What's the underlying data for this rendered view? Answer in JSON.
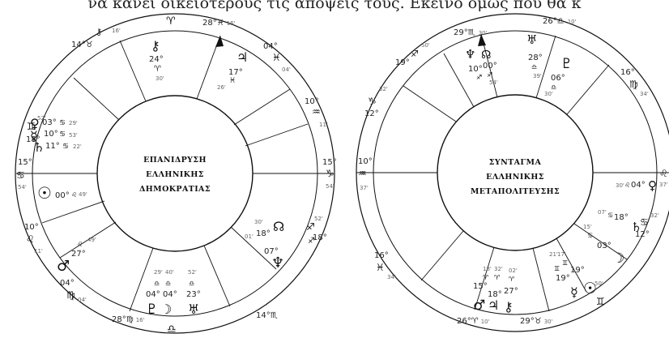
{
  "top_text": "να κανει οικειοτερους τις αποψεις τους. Εκεινο ομως που θα κ",
  "left_chart": {
    "title_lines": [
      "ΕΠΑΝΙΔΡΥΣΗ",
      "ΕΛΛΗΝΙΚΗΣ",
      "ΔΗΜΟΚΡΑΤΙΑΣ"
    ],
    "cusps": [
      {
        "deg": "28°",
        "sign": "♓",
        "min": "16'"
      },
      {
        "deg": "04°",
        "sign": "♓",
        "min": "04'"
      },
      {
        "deg": "10°",
        "sign": "♒",
        "min": "11'"
      },
      {
        "deg": "15°",
        "sign": "♑",
        "min": "54'"
      },
      {
        "deg": "18°",
        "sign": "♐",
        "min": "52'"
      },
      {
        "deg": "14°",
        "sign": "♏",
        "min": "16'"
      },
      {
        "deg": "28°",
        "sign": "♍",
        "min": "16'"
      },
      {
        "deg": "04°",
        "sign": "♍",
        "min": "04'"
      },
      {
        "deg": "10°",
        "sign": "♌",
        "min": "11'"
      },
      {
        "deg": "15°",
        "sign": "♋",
        "min": "54'"
      },
      {
        "deg": "18°",
        "sign": "♊",
        "min": "52'"
      },
      {
        "deg": "14°",
        "sign": "♉",
        "min": "16'"
      }
    ],
    "planets": [
      {
        "glyph": "⚷",
        "deg": "24°",
        "sign": "♈",
        "min": "30'"
      },
      {
        "glyph": "♃",
        "deg": "17°",
        "sign": "♓",
        "min": "26'"
      },
      {
        "glyph": "♀",
        "deg": "03°",
        "sign": "♋",
        "min": "29'"
      },
      {
        "glyph": "☿",
        "deg": "10°",
        "sign": "♋",
        "min": "53'"
      },
      {
        "glyph": "♄",
        "deg": "11°",
        "sign": "♋",
        "min": "22'"
      },
      {
        "glyph": "☉",
        "deg": "00°",
        "sign": "♌",
        "min": "49'"
      },
      {
        "glyph": "♂",
        "deg": "27°",
        "sign": "♌",
        "min": "49'"
      },
      {
        "glyph": "♇",
        "deg": "04°",
        "sign": "♎",
        "min": "29'"
      },
      {
        "glyph": "☽",
        "deg": "04°",
        "sign": "♎",
        "min": "40'"
      },
      {
        "glyph": "♅",
        "deg": "23°",
        "sign": "♎",
        "min": "52'"
      },
      {
        "glyph": "☊",
        "deg": "18°",
        "sign": "♐",
        "min": "30'"
      },
      {
        "glyph": "♆",
        "deg": "07°",
        "sign": "♐",
        "min": "01'"
      }
    ],
    "extra_labels": {
      "aries_top": "♈",
      "left_asc_deg": "15°",
      "left_asc_sign": "♋",
      "right_desc_deg": "15°",
      "right_desc_sign": "♑"
    }
  },
  "right_chart": {
    "title_lines": [
      "ΣΥΝΤΑΓΜΑ",
      "ΕΛΛΗΝΙΚΗΣ",
      "ΜΕΤΑΠΟΛΙΤΕΥΣΗΣ"
    ],
    "cusps": [
      {
        "deg": "29°",
        "sign": "♏",
        "min": "30'"
      },
      {
        "deg": "26°",
        "sign": "♎",
        "min": "10'"
      },
      {
        "deg": "16°",
        "sign": "♍",
        "min": "34'"
      },
      {
        "deg": "10°",
        "sign": "♌",
        "min": "37'"
      },
      {
        "deg": "12°",
        "sign": "♋",
        "min": "32'"
      },
      {
        "deg": "19°",
        "sign": "♊",
        "min": "50'"
      },
      {
        "deg": "29°",
        "sign": "♉",
        "min": "30'"
      },
      {
        "deg": "26°",
        "sign": "♈",
        "min": "10'"
      },
      {
        "deg": "16°",
        "sign": "♓",
        "min": "34'"
      },
      {
        "deg": "10°",
        "sign": "♒",
        "min": "37'"
      },
      {
        "deg": "12°",
        "sign": "♑",
        "min": "32'"
      },
      {
        "deg": "19°",
        "sign": "♐",
        "min": "50'"
      }
    ],
    "planets": [
      {
        "glyph": "♆",
        "deg": "10°",
        "sign": "♐",
        "min": "54'"
      },
      {
        "glyph": "☊",
        "deg": "00°",
        "sign": "♐",
        "min": "54'"
      },
      {
        "glyph": "♅",
        "deg": "28°",
        "sign": "♎",
        "min": "39'"
      },
      {
        "glyph": "♇",
        "deg": "06°",
        "sign": "♎",
        "min": "30'"
      },
      {
        "glyph": "♀",
        "deg": "04°",
        "sign": "♌",
        "min": "30'"
      },
      {
        "glyph": "♄",
        "deg": "18°",
        "sign": "♋",
        "min": "07'"
      },
      {
        "glyph": "☽",
        "deg": "03°",
        "sign": "♋",
        "min": "15'"
      },
      {
        "glyph": "☉",
        "deg": "19°",
        "sign": "♊",
        "min": "17'"
      },
      {
        "glyph": "☿",
        "deg": "19°",
        "sign": "♊",
        "min": "21'"
      },
      {
        "glyph": "♂",
        "deg": "15°",
        "sign": "♈",
        "min": "18'"
      },
      {
        "glyph": "♃",
        "deg": "18°",
        "sign": "♈",
        "min": "32'"
      },
      {
        "glyph": "⚷",
        "deg": "27°",
        "sign": "♈",
        "min": "02'"
      }
    ]
  }
}
